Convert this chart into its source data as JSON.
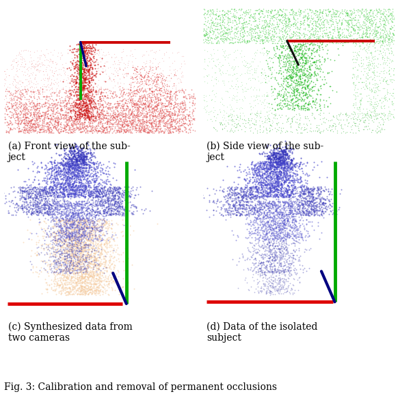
{
  "caption_a": "(a) Front view of the sub-\nject",
  "caption_b": "(b) Side view of the sub-\nject",
  "caption_c": "(c) Synthesized data from\ntwo cameras",
  "caption_d": "(d) Data of the isolated\nsubject",
  "fig_caption": "Fig. 3: Calibration and removal of permanent occlusions",
  "bg_color": "#ffffff",
  "font_size_caption": 10,
  "font_size_fig": 10
}
